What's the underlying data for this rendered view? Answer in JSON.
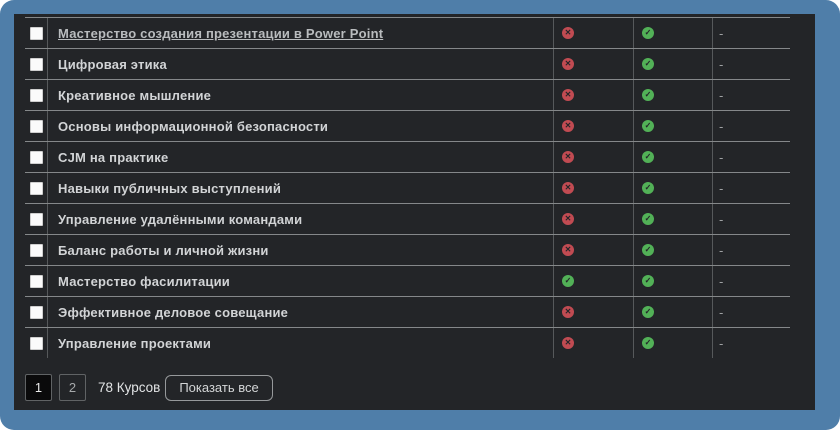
{
  "window": {
    "accent_color": "#4f7ea9",
    "panel_color": "#232528"
  },
  "table": {
    "rows": [
      {
        "name": "Мастерство создания презентации в Power Point",
        "status1": "cross",
        "status2": "check",
        "extra": "-"
      },
      {
        "name": "Цифровая этика",
        "status1": "cross",
        "status2": "check",
        "extra": "-"
      },
      {
        "name": "Креативное мышление",
        "status1": "cross",
        "status2": "check",
        "extra": "-"
      },
      {
        "name": "Основы информационной безопасности",
        "status1": "cross",
        "status2": "check",
        "extra": "-"
      },
      {
        "name": "CJM на практике",
        "status1": "cross",
        "status2": "check",
        "extra": "-"
      },
      {
        "name": "Навыки публичных выступлений",
        "status1": "cross",
        "status2": "check",
        "extra": "-"
      },
      {
        "name": "Управление удалёнными командами",
        "status1": "cross",
        "status2": "check",
        "extra": "-"
      },
      {
        "name": "Баланс работы и личной жизни",
        "status1": "cross",
        "status2": "check",
        "extra": "-"
      },
      {
        "name": "Мастерство фасилитации",
        "status1": "check",
        "status2": "check",
        "extra": "-"
      },
      {
        "name": "Эффективное деловое совещание",
        "status1": "cross",
        "status2": "check",
        "extra": "-"
      },
      {
        "name": "Управление проектами",
        "status1": "cross",
        "status2": "check",
        "extra": "-"
      }
    ]
  },
  "status_colors": {
    "cross": "#c14b52",
    "check": "#52b157"
  },
  "pagination": {
    "pages": [
      "1",
      "2"
    ],
    "active_page": "1",
    "count_label": "78 Курсов",
    "show_all_label": "Показать все"
  }
}
